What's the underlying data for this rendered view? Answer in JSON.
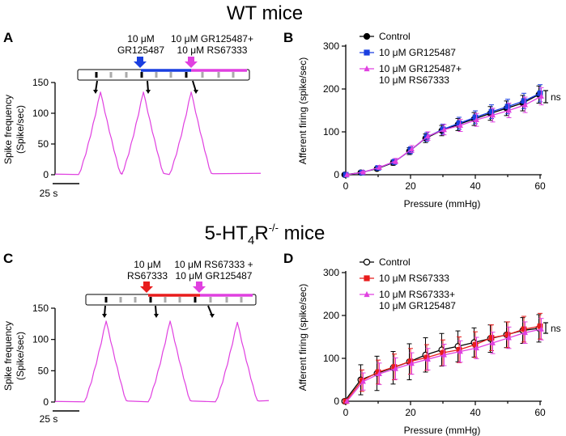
{
  "figure": {
    "title_top": "WT mice",
    "title_bottom": "5-HT4R-/- mice",
    "title_bottom_parts": [
      "5-HT",
      "4",
      "R",
      "-/-",
      " mice"
    ],
    "panel_letters": [
      "A",
      "B",
      "C",
      "D"
    ]
  },
  "panel_A": {
    "ylabel_line1": "Spike frequency",
    "ylabel_line2": "(Spike/sec)",
    "scale_bar_label": "25 s",
    "drug1_label": [
      "10 μM",
      "GR125487"
    ],
    "drug2_label": [
      "10 μM GR125487+",
      "10 μM RS67333"
    ],
    "colors": {
      "arrow1": "#1a3fe0",
      "arrow2": "#e040e0",
      "bar1": "#1a3fe0",
      "bar2": "#e040e0",
      "trace": "#e040e0"
    }
  },
  "panel_C": {
    "ylabel_line1": "Spike frequency",
    "ylabel_line2": "(Spike/sec)",
    "scale_bar_label": "25 s",
    "drug1_label": [
      "10 μM",
      "RS67333"
    ],
    "drug2_label": [
      "10 μM RS67333 +",
      "10 μM GR125487"
    ],
    "colors": {
      "arrow1": "#e81c1c",
      "arrow2": "#e040e0",
      "bar1": "#e81c1c",
      "bar2": "#e040e0",
      "trace": "#e040e0"
    }
  },
  "significance_label": "ns",
  "chart_data": [
    {
      "id": "A",
      "type": "line",
      "title": "",
      "xlabel": "",
      "ylabel": "Spike frequency (Spike/sec)",
      "ylim": [
        0,
        150
      ],
      "yticks": [
        0,
        50,
        100,
        150
      ],
      "series": [
        {
          "name": "Trace",
          "peaks": [
            135,
            135,
            135
          ]
        }
      ]
    },
    {
      "id": "B",
      "type": "line",
      "title": "",
      "xlabel": "Pressure (mmHg)",
      "ylabel": "Afferent firing (spike/sec)",
      "xlim": [
        0,
        60
      ],
      "ylim": [
        0,
        300
      ],
      "xticks": [
        0,
        20,
        40,
        60
      ],
      "yticks": [
        0,
        100,
        200,
        300
      ],
      "x": [
        0,
        5,
        10,
        15,
        20,
        25,
        30,
        35,
        40,
        45,
        50,
        55,
        60
      ],
      "series": [
        {
          "name": "Control",
          "color": "#000000",
          "marker": "circle-filled",
          "values": [
            0,
            5,
            14,
            28,
            55,
            85,
            103,
            117,
            130,
            143,
            155,
            167,
            187
          ],
          "err": [
            0,
            2,
            4,
            6,
            8,
            10,
            12,
            14,
            15,
            16,
            17,
            18,
            20
          ]
        },
        {
          "name": "10 μM GR125487",
          "color": "#1a3fe0",
          "marker": "square",
          "values": [
            0,
            5,
            16,
            30,
            57,
            88,
            106,
            120,
            134,
            147,
            159,
            172,
            190
          ],
          "err": [
            0,
            2,
            4,
            6,
            8,
            10,
            12,
            14,
            15,
            16,
            17,
            18,
            20
          ]
        },
        {
          "name": "10 μM GR125487+ 10 μM RS67333",
          "color": "#e040e0",
          "marker": "triangle",
          "values": [
            0,
            6,
            17,
            32,
            60,
            90,
            105,
            115,
            128,
            139,
            150,
            163,
            183
          ],
          "err": [
            0,
            2,
            4,
            6,
            8,
            10,
            12,
            14,
            15,
            16,
            17,
            18,
            20
          ]
        }
      ]
    },
    {
      "id": "C",
      "type": "line",
      "title": "",
      "xlabel": "",
      "ylabel": "Spike frequency (Spike/sec)",
      "ylim": [
        0,
        150
      ],
      "yticks": [
        0,
        50,
        100,
        150
      ],
      "series": [
        {
          "name": "Trace",
          "peaks": [
            130,
            130,
            128
          ]
        }
      ]
    },
    {
      "id": "D",
      "type": "line",
      "title": "",
      "xlabel": "Pressure (mmHg)",
      "ylabel": "Afferent firing (spike/sec)",
      "xlim": [
        0,
        60
      ],
      "ylim": [
        0,
        300
      ],
      "xticks": [
        0,
        20,
        40,
        60
      ],
      "yticks": [
        0,
        100,
        200,
        300
      ],
      "x": [
        0,
        5,
        10,
        15,
        20,
        25,
        30,
        35,
        40,
        45,
        50,
        55,
        60
      ],
      "series": [
        {
          "name": "Control",
          "color": "#000000",
          "marker": "circle-open",
          "values": [
            0,
            50,
            65,
            78,
            92,
            108,
            120,
            128,
            137,
            146,
            155,
            165,
            170
          ],
          "err": [
            0,
            35,
            40,
            38,
            42,
            40,
            38,
            36,
            34,
            32,
            30,
            30,
            32
          ]
        },
        {
          "name": "10 μM RS67333",
          "color": "#e81c1c",
          "marker": "square",
          "values": [
            0,
            48,
            68,
            80,
            93,
            102,
            113,
            120,
            132,
            148,
            155,
            168,
            175
          ],
          "err": [
            0,
            25,
            28,
            30,
            30,
            30,
            30,
            30,
            30,
            30,
            30,
            30,
            30
          ]
        },
        {
          "name": "10 μM RS67333+ 10 μM GR125487",
          "color": "#e040e0",
          "marker": "triangle",
          "values": [
            0,
            46,
            64,
            76,
            88,
            98,
            108,
            116,
            124,
            136,
            148,
            160,
            168
          ],
          "err": [
            0,
            20,
            25,
            25,
            25,
            25,
            25,
            25,
            25,
            25,
            25,
            25,
            25
          ]
        }
      ]
    }
  ]
}
